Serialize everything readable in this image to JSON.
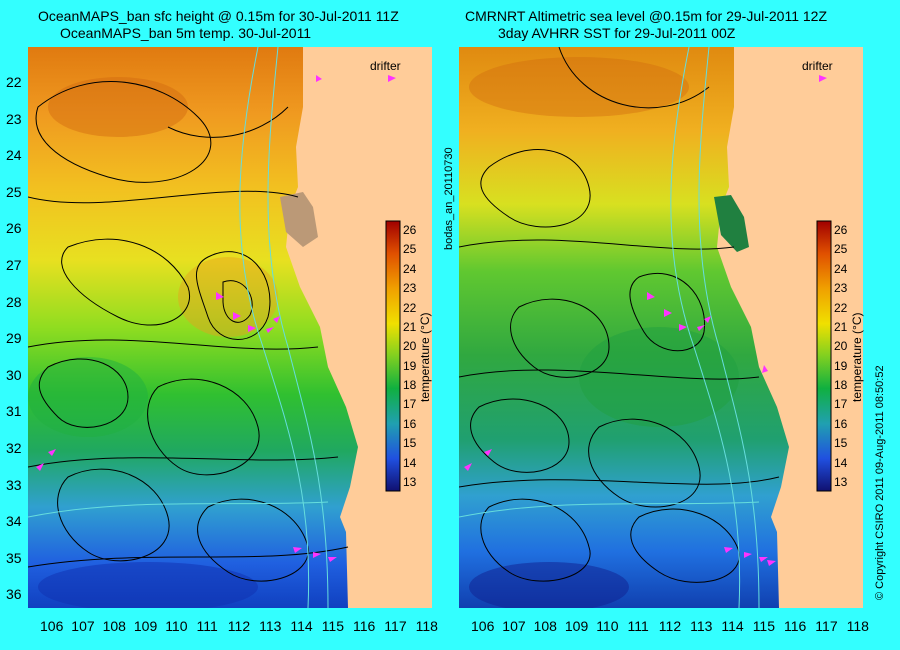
{
  "left_panel": {
    "title_line1": "OceanMAPS_ban sfc height @ 0.15m for 30-Jul-2011 11Z",
    "title_line2": "OceanMAPS_ban 5m temp. 30-Jul-2011"
  },
  "right_panel": {
    "title_line1": "CMRNRT Altimetric sea level  @0.15m  for 29-Jul-2011 12Z",
    "title_line2": "3day AVHRR SST for 29-Jul-2011 00Z"
  },
  "latitudes": [
    "22",
    "23",
    "24",
    "25",
    "26",
    "27",
    "28",
    "29",
    "30",
    "31",
    "32",
    "33",
    "34",
    "35",
    "36"
  ],
  "longitudes": [
    "106",
    "107",
    "108",
    "109",
    "110",
    "111",
    "112",
    "113",
    "114",
    "115",
    "116",
    "117",
    "118"
  ],
  "colorbar": {
    "ticks": [
      "26",
      "25",
      "24",
      "23",
      "22",
      "21",
      "20",
      "19",
      "18",
      "17",
      "16",
      "15",
      "14",
      "13"
    ],
    "unit": "temperature (°C)"
  },
  "legend": {
    "drifter_label": "drifter"
  },
  "side_text": {
    "run_id": "bodas_an_20110730",
    "copyright": "© Copyright CSIRO 2011   09-Aug-2011 08:50:52"
  },
  "colors": {
    "background": "#33ffff",
    "land": "#ffcc99",
    "drifter": "#ff33ff",
    "contour": "#000000",
    "isobath": "#66dddd"
  }
}
